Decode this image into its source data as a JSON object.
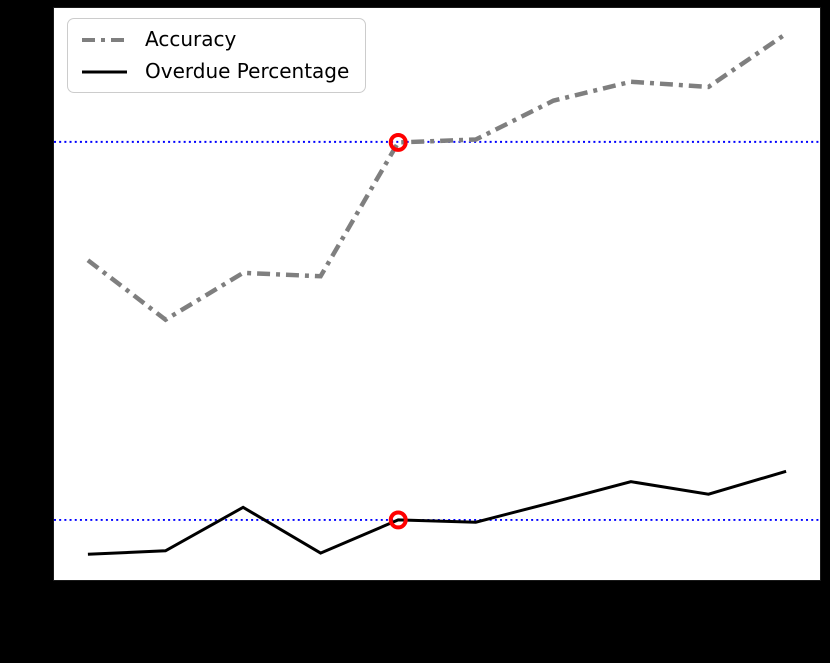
{
  "figure": {
    "outer_background": "#000000",
    "plot_background": "#ffffff",
    "spine_color": "#000000"
  },
  "legend": {
    "position": "upper left",
    "items": [
      {
        "label": "Accuracy",
        "color": "#7f7f7f",
        "style": "dashdot",
        "linewidth": 4
      },
      {
        "label": "Overdue Percentage",
        "color": "#000000",
        "style": "solid",
        "linewidth": 3
      }
    ]
  },
  "chart_data": {
    "type": "line",
    "title": "",
    "xlabel": "",
    "ylabel": "",
    "x": [
      0,
      1,
      2,
      3,
      4,
      5,
      6,
      7,
      8,
      9
    ],
    "x_tick_labels_visible": false,
    "y_tick_labels_visible": false,
    "grid": false,
    "legend_position": "upper left",
    "ylim": [
      0,
      100
    ],
    "series": [
      {
        "name": "Accuracy",
        "color": "#7f7f7f",
        "style": "dashdot",
        "linewidth": 4.5,
        "values": [
          55.9,
          45.5,
          53.7,
          53.1,
          76.5,
          77.0,
          83.8,
          87.1,
          86.2,
          95.5
        ]
      },
      {
        "name": "Overdue Percentage",
        "color": "#000000",
        "style": "solid",
        "linewidth": 3,
        "values": [
          4.5,
          5.1,
          12.7,
          4.7,
          10.5,
          10.1,
          13.6,
          17.2,
          15.0,
          19.0
        ]
      }
    ],
    "threshold_lines": [
      {
        "y": 76.6,
        "color": "#0000ff",
        "style": "dotted",
        "linewidth": 2
      },
      {
        "y": 10.5,
        "color": "#0000ff",
        "style": "dotted",
        "linewidth": 2
      }
    ],
    "highlight_markers": [
      {
        "series": "Accuracy",
        "x": 4,
        "y": 76.5,
        "marker": "open-circle",
        "color": "#ff0000",
        "radius": 7.5,
        "edgewidth": 4
      },
      {
        "series": "Overdue Percentage",
        "x": 4,
        "y": 10.5,
        "marker": "open-circle",
        "color": "#ff0000",
        "radius": 7.5,
        "edgewidth": 4
      }
    ]
  }
}
